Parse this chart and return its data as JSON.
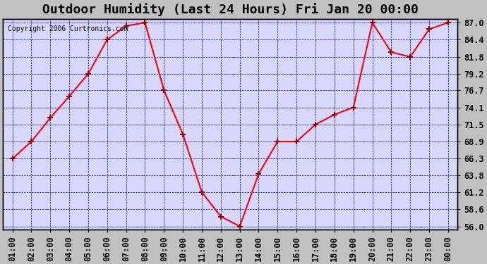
{
  "title": "Outdoor Humidity (Last 24 Hours) Fri Jan 20 00:00",
  "copyright": "Copyright 2006 Curtronics.com",
  "x_labels": [
    "01:00",
    "02:00",
    "03:00",
    "04:00",
    "05:00",
    "06:00",
    "07:00",
    "08:00",
    "09:00",
    "10:00",
    "11:00",
    "12:00",
    "13:00",
    "14:00",
    "15:00",
    "16:00",
    "17:00",
    "18:00",
    "19:00",
    "20:00",
    "21:00",
    "22:00",
    "23:00",
    "00:00"
  ],
  "x_values": [
    1,
    2,
    3,
    4,
    5,
    6,
    7,
    8,
    9,
    10,
    11,
    12,
    13,
    14,
    15,
    16,
    17,
    18,
    19,
    20,
    21,
    22,
    23,
    24
  ],
  "y_values": [
    66.3,
    68.9,
    72.5,
    75.8,
    79.2,
    84.4,
    86.5,
    87.0,
    76.7,
    70.0,
    61.2,
    57.5,
    56.0,
    64.0,
    68.9,
    68.9,
    71.5,
    73.0,
    74.1,
    87.0,
    82.5,
    81.8,
    86.0,
    87.0
  ],
  "y_ticks": [
    56.0,
    58.6,
    61.2,
    63.8,
    66.3,
    68.9,
    71.5,
    74.1,
    76.7,
    79.2,
    81.8,
    84.4,
    87.0
  ],
  "ylim": [
    55.5,
    87.5
  ],
  "line_color": "red",
  "marker_color": "darkred",
  "bg_color": "#d0d0ff",
  "plot_bg_color": "#c8c8ff",
  "grid_color": "blue",
  "title_fontsize": 13,
  "tick_fontsize": 8.5
}
